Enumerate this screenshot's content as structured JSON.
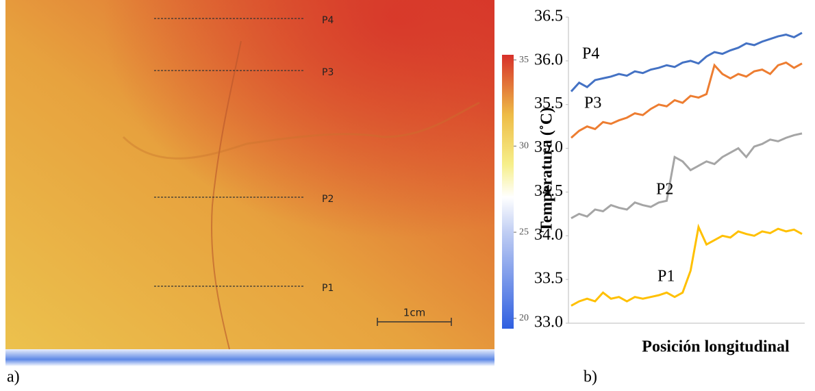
{
  "chart_data": [
    {
      "type": "heatmap",
      "label": "a)",
      "annotations": [
        "P4",
        "P3",
        "P2",
        "P1"
      ],
      "scale_bar": "1cm",
      "colorbar": {
        "ylim": [
          19.4,
          35.3
        ],
        "yticks": [
          20,
          25,
          30,
          35
        ]
      }
    },
    {
      "type": "line",
      "label": "b)",
      "ylabel": "Temperatura (˚C)",
      "xlabel": "Posición longitudinal",
      "ylim": [
        33,
        36.5
      ],
      "yticks": [
        {
          "value": 33,
          "label": "33.0"
        },
        33.5,
        {
          "value": 34,
          "label": "34.0"
        },
        34.5,
        {
          "value": 35,
          "label": "35.0"
        },
        35.5,
        {
          "value": 36,
          "label": "36.0"
        },
        36.5
      ],
      "series": [
        {
          "name": "P4",
          "color": "#4472c4",
          "values": [
            35.65,
            35.75,
            35.7,
            35.78,
            35.8,
            35.82,
            35.85,
            35.83,
            35.88,
            35.86,
            35.9,
            35.92,
            35.95,
            35.93,
            35.98,
            36.0,
            35.97,
            36.05,
            36.1,
            36.08,
            36.12,
            36.15,
            36.2,
            36.18,
            36.22,
            36.25,
            36.28,
            36.3,
            36.27,
            36.32
          ]
        },
        {
          "name": "P3",
          "color": "#ed7d31",
          "values": [
            35.12,
            35.2,
            35.25,
            35.22,
            35.3,
            35.28,
            35.32,
            35.35,
            35.4,
            35.38,
            35.45,
            35.5,
            35.48,
            35.55,
            35.52,
            35.6,
            35.58,
            35.62,
            35.95,
            35.85,
            35.8,
            35.85,
            35.82,
            35.88,
            35.9,
            35.85,
            35.95,
            35.98,
            35.92,
            35.97
          ]
        },
        {
          "name": "P2",
          "color": "#a5a5a5",
          "values": [
            34.2,
            34.25,
            34.22,
            34.3,
            34.28,
            34.35,
            34.32,
            34.3,
            34.38,
            34.35,
            34.33,
            34.38,
            34.4,
            34.9,
            34.85,
            34.75,
            34.8,
            34.85,
            34.82,
            34.9,
            34.95,
            35.0,
            34.9,
            35.02,
            35.05,
            35.1,
            35.08,
            35.12,
            35.15,
            35.17
          ]
        },
        {
          "name": "P1",
          "color": "#ffc000",
          "values": [
            33.2,
            33.25,
            33.28,
            33.25,
            33.35,
            33.28,
            33.3,
            33.25,
            33.3,
            33.28,
            33.3,
            33.32,
            33.35,
            33.3,
            33.35,
            33.6,
            34.1,
            33.9,
            33.95,
            34.0,
            33.98,
            34.05,
            34.02,
            34.0,
            34.05,
            34.03,
            34.08,
            34.05,
            34.07,
            34.02
          ]
        }
      ]
    }
  ]
}
